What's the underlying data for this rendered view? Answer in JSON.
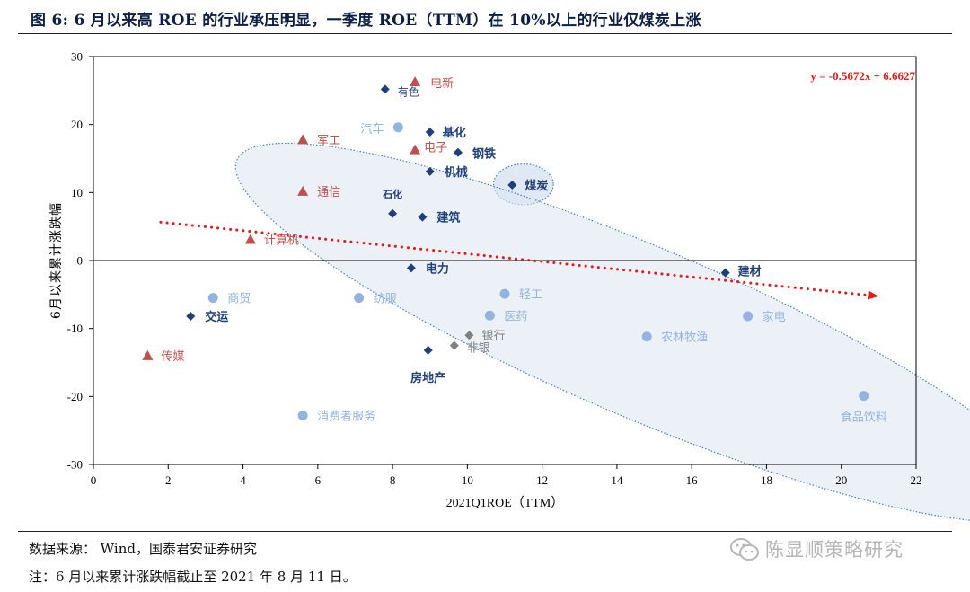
{
  "figure_title": "图 6:  6 月以来高 ROE 的行业承压明显，一季度 ROE（TTM）在 10%以上的行业仅煤炭上涨",
  "source": "数据来源：   Wind，国泰君安证券研究",
  "note": "注：6 月以来累计涨跌幅截止至 2021 年 8 月 11 日。",
  "watermark": "陈显顺策略研究",
  "watermark_icon": "wechat-icon",
  "colors": {
    "navy_diamond": "#1f3f78",
    "light_blue_circle": "#93b4e0",
    "red_triangle": "#c0504d",
    "gray_diamond": "#808080",
    "trend": "#e31a1c",
    "ellipse_fill": "#dde6f2",
    "ellipse_stroke": "#3f7fbf"
  },
  "chart_data": {
    "type": "scatter",
    "xlabel": "2021Q1ROE（TTM）",
    "ylabel": "6月以来累计涨跌幅",
    "xlim": [
      0,
      22
    ],
    "ylim": [
      -30,
      30
    ],
    "xticks": [
      0,
      2,
      4,
      6,
      8,
      10,
      12,
      14,
      16,
      18,
      20,
      22
    ],
    "yticks": [
      30,
      20,
      10,
      0,
      -10,
      -20,
      -30
    ],
    "grid": false,
    "trendline": {
      "equation": "y = -0.5672x + 6.6627",
      "slope": -0.5672,
      "intercept": 6.6627,
      "x_start": 1.8,
      "x_end": 21.0
    },
    "highlight_regions": [
      {
        "name": "coal",
        "cx": 11.5,
        "cy": 11.2,
        "rx": 0.8,
        "ry": 3.0
      },
      {
        "name": "high-roe",
        "cx": 14.7,
        "cy": -10.6,
        "rx": 11.8,
        "ry": 12.5,
        "angle": 23
      }
    ],
    "points": [
      {
        "name": "有色",
        "x": 7.8,
        "y": 25.2,
        "marker": "diamond",
        "color": "navy_diamond"
      },
      {
        "name": "电新",
        "x": 8.6,
        "y": 26.3,
        "marker": "triangle",
        "color": "red_triangle"
      },
      {
        "name": "汽车",
        "x": 8.15,
        "y": 19.6,
        "marker": "circle",
        "color": "light_blue_circle"
      },
      {
        "name": "基化",
        "x": 9.0,
        "y": 18.9,
        "marker": "diamond",
        "color": "navy_diamond"
      },
      {
        "name": "军工",
        "x": 5.6,
        "y": 17.8,
        "marker": "triangle",
        "color": "red_triangle"
      },
      {
        "name": "电子",
        "x": 8.6,
        "y": 16.3,
        "marker": "triangle",
        "color": "red_triangle"
      },
      {
        "name": "钢铁",
        "x": 9.75,
        "y": 15.9,
        "marker": "diamond",
        "color": "navy_diamond"
      },
      {
        "name": "机械",
        "x": 9.0,
        "y": 13.1,
        "marker": "diamond",
        "color": "navy_diamond"
      },
      {
        "name": "煤炭",
        "x": 11.2,
        "y": 11.1,
        "marker": "diamond",
        "color": "navy_diamond"
      },
      {
        "name": "通信",
        "x": 5.6,
        "y": 10.2,
        "marker": "triangle",
        "color": "red_triangle"
      },
      {
        "name": "石化",
        "x": 8.0,
        "y": 6.9,
        "marker": "diamond",
        "color": "navy_diamond"
      },
      {
        "name": "建筑",
        "x": 8.8,
        "y": 6.4,
        "marker": "diamond",
        "color": "navy_diamond"
      },
      {
        "name": "计算机",
        "x": 4.2,
        "y": 3.1,
        "marker": "triangle",
        "color": "red_triangle"
      },
      {
        "name": "电力",
        "x": 8.5,
        "y": -1.1,
        "marker": "diamond",
        "color": "navy_diamond"
      },
      {
        "name": "建材",
        "x": 16.9,
        "y": -1.8,
        "marker": "diamond",
        "color": "navy_diamond"
      },
      {
        "name": "商贸",
        "x": 3.2,
        "y": -5.5,
        "marker": "circle",
        "color": "light_blue_circle"
      },
      {
        "name": "纺服",
        "x": 7.1,
        "y": -5.5,
        "marker": "circle",
        "color": "light_blue_circle"
      },
      {
        "name": "轻工",
        "x": 11.0,
        "y": -4.9,
        "marker": "circle",
        "color": "light_blue_circle"
      },
      {
        "name": "交运",
        "x": 2.6,
        "y": -8.2,
        "marker": "diamond",
        "color": "navy_diamond"
      },
      {
        "name": "医药",
        "x": 10.6,
        "y": -8.1,
        "marker": "circle",
        "color": "light_blue_circle"
      },
      {
        "name": "家电",
        "x": 17.5,
        "y": -8.2,
        "marker": "circle",
        "color": "light_blue_circle"
      },
      {
        "name": "银行",
        "x": 10.05,
        "y": -11.0,
        "marker": "diamond",
        "color": "gray_diamond"
      },
      {
        "name": "非银",
        "x": 9.65,
        "y": -12.5,
        "marker": "diamond",
        "color": "gray_diamond"
      },
      {
        "name": "农林牧渔",
        "x": 14.8,
        "y": -11.2,
        "marker": "circle",
        "color": "light_blue_circle"
      },
      {
        "name": "房地产",
        "x": 8.95,
        "y": -13.2,
        "marker": "diamond",
        "color": "navy_diamond"
      },
      {
        "name": "传媒",
        "x": 1.45,
        "y": -14.0,
        "marker": "triangle",
        "color": "red_triangle"
      },
      {
        "name": "食品饮料",
        "x": 20.6,
        "y": -19.9,
        "marker": "circle",
        "color": "light_blue_circle"
      },
      {
        "name": "消费者服务",
        "x": 5.6,
        "y": -22.8,
        "marker": "circle",
        "color": "light_blue_circle"
      }
    ]
  }
}
